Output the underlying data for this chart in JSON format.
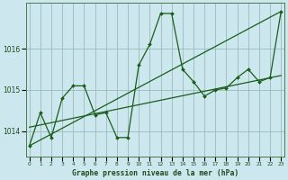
{
  "title": "Graphe pression niveau de la mer (hPa)",
  "background_color": "#cce8ee",
  "plot_bg_color": "#cce8ee",
  "grid_color": "#99bbbb",
  "line_color": "#1a5c1a",
  "text_color": "#1a4a1a",
  "hours": [
    0,
    1,
    2,
    3,
    4,
    5,
    6,
    7,
    8,
    9,
    10,
    11,
    12,
    13,
    14,
    15,
    16,
    17,
    18,
    19,
    20,
    21,
    22,
    23
  ],
  "pressure": [
    1013.65,
    1014.45,
    1013.85,
    1014.8,
    1015.1,
    1015.1,
    1014.4,
    1014.45,
    1013.85,
    1013.85,
    1015.6,
    1016.1,
    1016.85,
    1016.85,
    1015.5,
    1015.2,
    1014.85,
    1015.0,
    1015.05,
    1015.3,
    1015.5,
    1015.2,
    1015.3,
    1016.9
  ],
  "trend1_x": [
    0,
    23
  ],
  "trend1_y": [
    1013.65,
    1016.9
  ],
  "trend2_x": [
    0,
    23
  ],
  "trend2_y": [
    1014.1,
    1015.35
  ],
  "ylim": [
    1013.4,
    1017.1
  ],
  "yticks": [
    1014,
    1015,
    1016
  ],
  "xlim": [
    -0.3,
    23.3
  ]
}
